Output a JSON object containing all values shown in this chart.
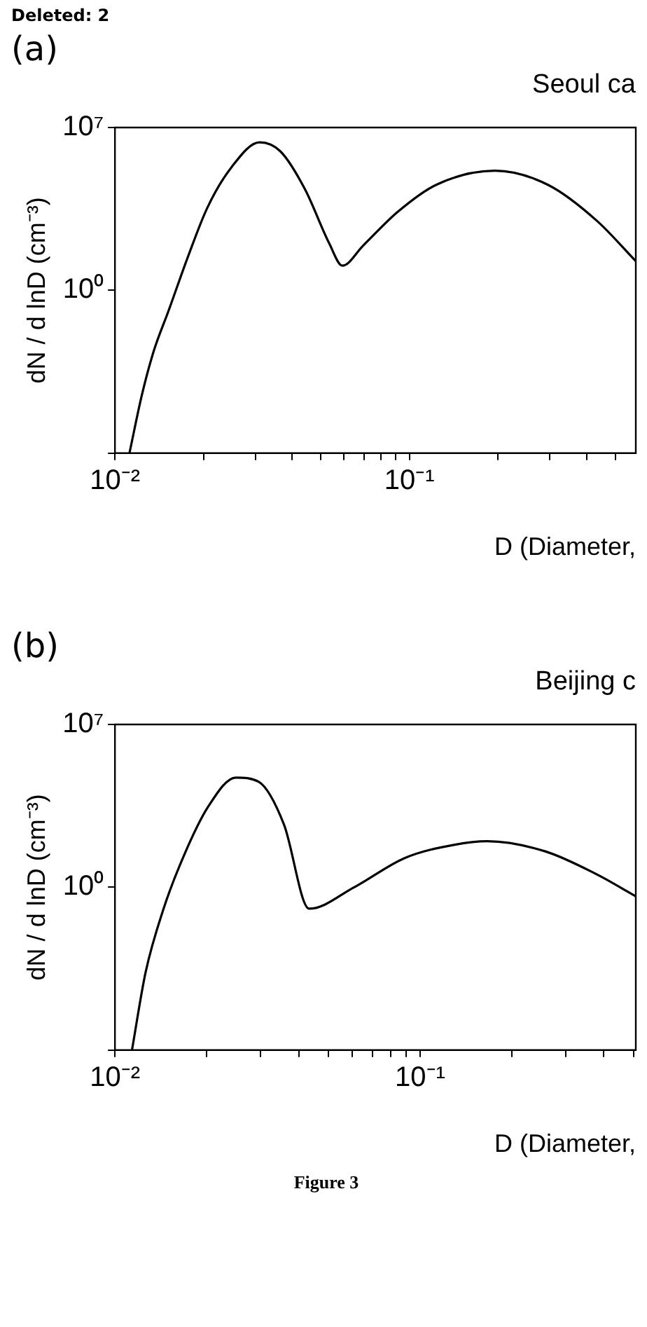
{
  "chart_data": [
    {
      "type": "line",
      "title": "(a)",
      "subtitle": "Seoul ca",
      "xlabel": "D (Diameter,",
      "ylabel": "dN / d lnD (cm⁻³)",
      "annotations": [
        "Deleted: 2"
      ],
      "log": "xy",
      "grid": false,
      "legend": false,
      "marker": "none",
      "line_style": "solid",
      "xlim": [
        0.01,
        0.587
      ],
      "ylim": [
        1e-07,
        10000000.0
      ],
      "xticks": [
        {
          "value": 0.01,
          "label": "10⁻²"
        },
        {
          "value": 0.02,
          "label": null
        },
        {
          "value": 0.03,
          "label": null
        },
        {
          "value": 0.04,
          "label": null
        },
        {
          "value": 0.05,
          "label": null
        },
        {
          "value": 0.06,
          "label": null
        },
        {
          "value": 0.07,
          "label": null
        },
        {
          "value": 0.08,
          "label": null
        },
        {
          "value": 0.09,
          "label": null
        },
        {
          "value": 0.1,
          "label": "10⁻¹"
        },
        {
          "value": 0.2,
          "label": null
        },
        {
          "value": 0.3,
          "label": null
        },
        {
          "value": 0.4,
          "label": null
        },
        {
          "value": 0.5,
          "label": null
        }
      ],
      "yticks": [
        {
          "value": 1e-07,
          "label": null
        },
        {
          "value": 1,
          "label": "10⁰"
        },
        {
          "value": 10000000.0,
          "label": "10⁷"
        }
      ],
      "x": [
        0.0112,
        0.01233,
        0.01355,
        0.0152,
        0.0177,
        0.0206,
        0.0249,
        0.031,
        0.0365,
        0.0442,
        0.0534,
        0.0592,
        0.0697,
        0.091,
        0.123,
        0.195,
        0.296,
        0.433,
        0.587
      ],
      "series": [
        {
          "color": "#000000",
          "values": [
            1e-07,
            3e-05,
            0.0025,
            0.13,
            28,
            3600,
            200000,
            2300000,
            930000,
            22000,
            105,
            11.5,
            85,
            2300,
            34000,
            140000,
            34000,
            980,
            18
          ]
        }
      ]
    },
    {
      "type": "line",
      "title": "(b)",
      "subtitle": "Beijing c",
      "xlabel": "D (Diameter,",
      "ylabel": "dN / d lnD (cm⁻³)",
      "annotations": [
        "Figure 3"
      ],
      "log": "xy",
      "grid": false,
      "legend": false,
      "marker": "none",
      "line_style": "solid",
      "xlim": [
        0.01,
        0.509
      ],
      "ylim": [
        1e-07,
        10000000.0
      ],
      "xticks": [
        {
          "value": 0.01,
          "label": "10⁻²"
        },
        {
          "value": 0.02,
          "label": null
        },
        {
          "value": 0.03,
          "label": null
        },
        {
          "value": 0.04,
          "label": null
        },
        {
          "value": 0.05,
          "label": null
        },
        {
          "value": 0.06,
          "label": null
        },
        {
          "value": 0.07,
          "label": null
        },
        {
          "value": 0.08,
          "label": null
        },
        {
          "value": 0.09,
          "label": null
        },
        {
          "value": 0.1,
          "label": "10⁻¹"
        },
        {
          "value": 0.2,
          "label": null
        },
        {
          "value": 0.3,
          "label": null
        },
        {
          "value": 0.4,
          "label": null
        },
        {
          "value": 0.5,
          "label": null
        }
      ],
      "yticks": [
        {
          "value": 1e-07,
          "label": null
        },
        {
          "value": 1,
          "label": "10⁰"
        },
        {
          "value": 10000000.0,
          "label": "10⁷"
        }
      ],
      "x": [
        0.01137,
        0.0126,
        0.0144,
        0.0168,
        0.0202,
        0.0249,
        0.0296,
        0.0358,
        0.0433,
        0.0608,
        0.089,
        0.13,
        0.166,
        0.257,
        0.376,
        0.509
      ],
      "series": [
        {
          "color": "#000000",
          "values": [
            1e-07,
            0.00022,
            0.11,
            22,
            2900,
            52000,
            34000,
            500,
            0.12,
            1,
            18,
            68,
            96,
            35,
            3.8,
            0.41
          ]
        }
      ]
    }
  ]
}
